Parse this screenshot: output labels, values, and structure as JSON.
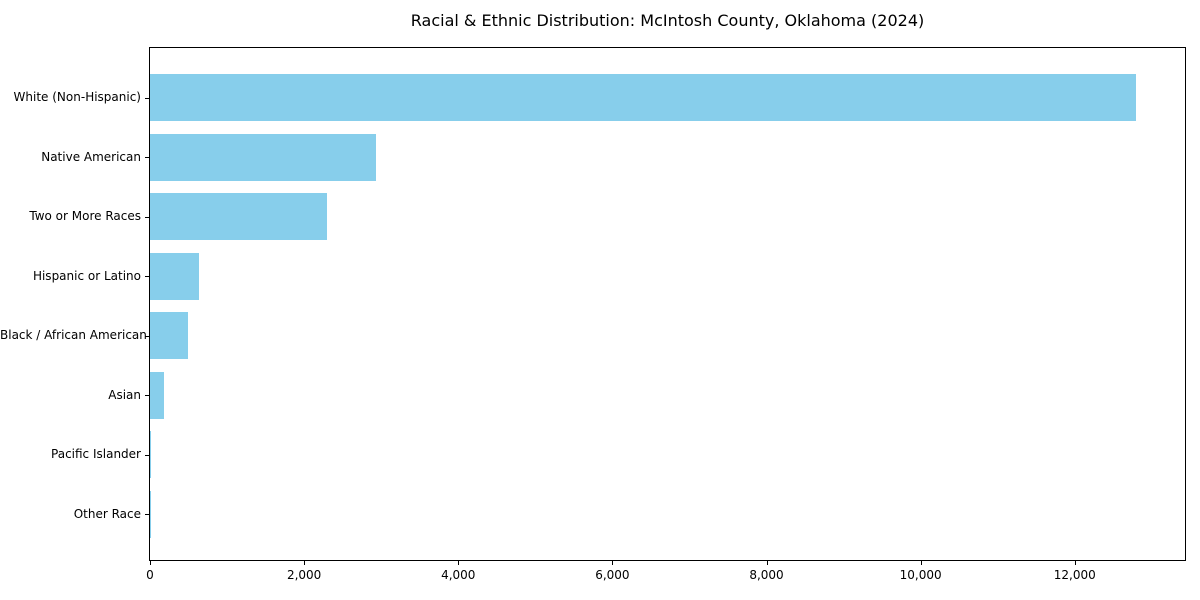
{
  "title": "Racial & Ethnic Distribution: McIntosh County, Oklahoma (2024)",
  "chart_data": {
    "type": "bar",
    "orientation": "horizontal",
    "title": "Racial & Ethnic Distribution: McIntosh County, Oklahoma (2024)",
    "categories": [
      "White (Non-Hispanic)",
      "Native American",
      "Two or More Races",
      "Hispanic or Latino",
      "Black / African American",
      "Asian",
      "Pacific Islander",
      "Other Race"
    ],
    "values": [
      12800,
      2930,
      2300,
      640,
      495,
      180,
      15,
      5
    ],
    "xlabel": "",
    "ylabel": "",
    "xlim": [
      0,
      13430
    ],
    "x_ticks": [
      {
        "value": 0,
        "label": "0"
      },
      {
        "value": 2000,
        "label": "2,000"
      },
      {
        "value": 4000,
        "label": "4,000"
      },
      {
        "value": 6000,
        "label": "6,000"
      },
      {
        "value": 8000,
        "label": "8,000"
      },
      {
        "value": 10000,
        "label": "10,000"
      },
      {
        "value": 12000,
        "label": "12,000"
      }
    ],
    "grid": false,
    "legend": "none",
    "bar_color": "#87CEEB",
    "background_color": "#ffffff",
    "frame": true
  }
}
